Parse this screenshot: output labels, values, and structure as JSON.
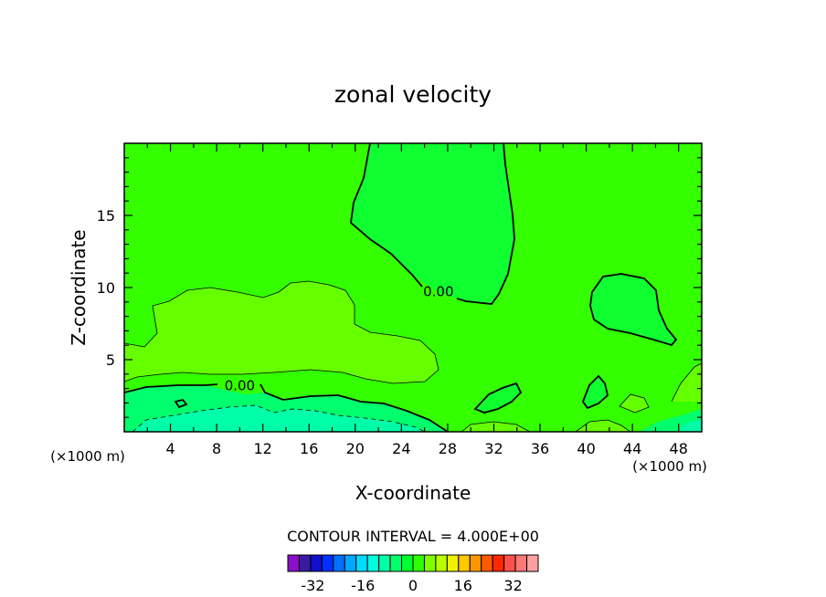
{
  "chart_data": {
    "type": "contour",
    "title": "zonal velocity",
    "xlabel": "X-coordinate",
    "ylabel": "Z-coordinate",
    "x_unit_label": "(×1000 m)",
    "xlim": [
      0,
      50
    ],
    "ylim": [
      0,
      20
    ],
    "x_ticks": [
      4,
      8,
      12,
      16,
      20,
      24,
      28,
      32,
      36,
      40,
      44,
      48
    ],
    "y_ticks": [
      5,
      10,
      15
    ],
    "contour_interval_label": "CONTOUR INTERVAL = 4.000E+00",
    "contour_labels": [
      {
        "text": "0.00",
        "x": 27.2,
        "z": 9.7
      },
      {
        "text": "0.00",
        "x": 10.0,
        "z": 3.2
      }
    ],
    "colorbar": {
      "min": -40,
      "max": 40,
      "step": 4,
      "colors": [
        "#8a10c8",
        "#3a1aa0",
        "#1010cc",
        "#0030ff",
        "#0070ff",
        "#00a8ff",
        "#00dcff",
        "#00ffe0",
        "#00ffa8",
        "#00ff6c",
        "#00ff30",
        "#30ff00",
        "#80ff00",
        "#b8ff00",
        "#f0f000",
        "#ffc800",
        "#ff9600",
        "#ff5a00",
        "#ff2800",
        "#ff5050",
        "#ff7878",
        "#ffa0a0"
      ],
      "tick_labels": [
        "-32",
        "-16",
        "0",
        "16",
        "32"
      ],
      "tick_values": [
        -32,
        -16,
        0,
        16,
        32
      ]
    },
    "grid": false,
    "legend": "colorbar-bottom"
  }
}
